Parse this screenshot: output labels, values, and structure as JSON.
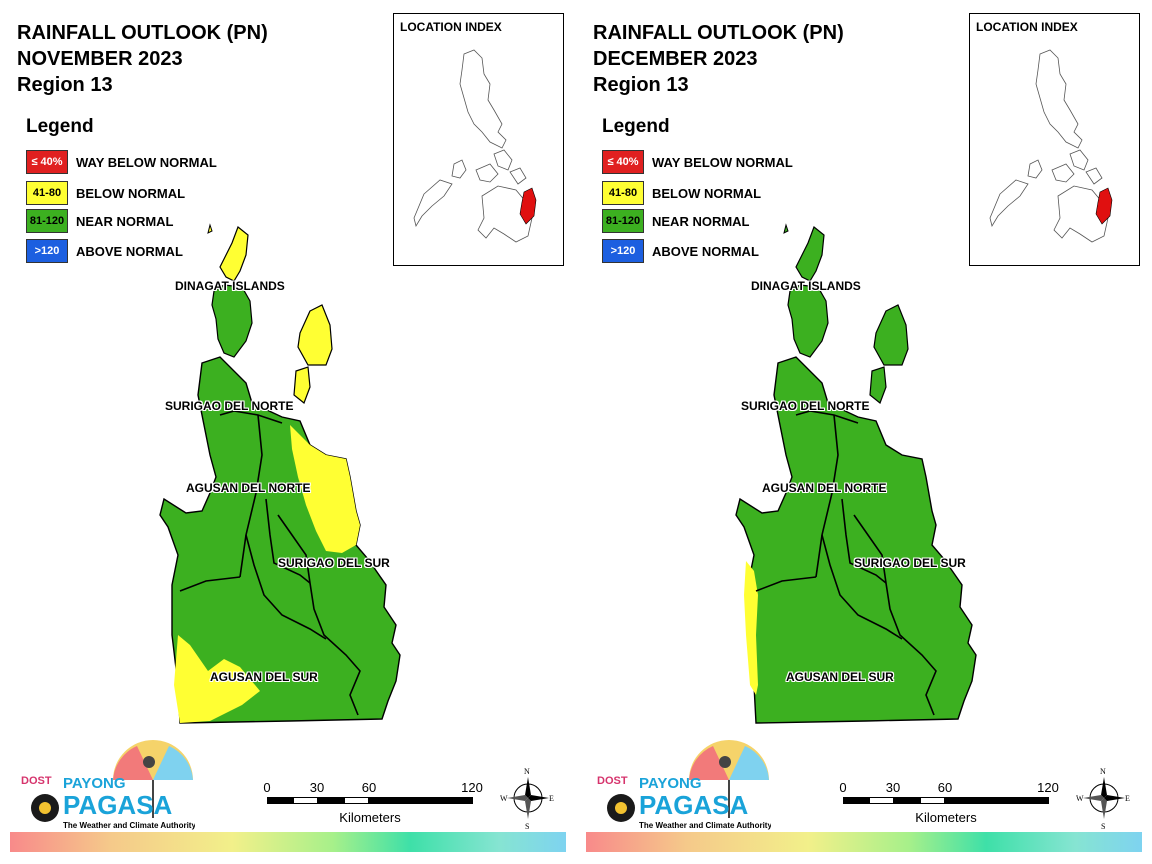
{
  "panels": [
    {
      "title_line1": "RAINFALL OUTLOOK (PN)",
      "title_line2": "NOVEMBER 2023",
      "title_line3": "Region 13",
      "legend": {
        "title": "Legend",
        "items": [
          {
            "range": "≤ 40%",
            "label": "WAY BELOW NORMAL",
            "color": "#e02020"
          },
          {
            "range": "41-80",
            "label": "BELOW NORMAL",
            "color": "#ffff33"
          },
          {
            "range": "81-120",
            "label": "NEAR NORMAL",
            "color": "#3cb020"
          },
          {
            "range": ">120",
            "label": "ABOVE NORMAL",
            "color": "#1c5fe0"
          }
        ]
      },
      "location_index_title": "LOCATION INDEX",
      "provinces": {
        "dinagat": "DINAGAT ISLANDS",
        "surigao_norte": "SURIGAO DEL NORTE",
        "agusan_norte": "AGUSAN DEL NORTE",
        "surigao_sur": "SURIGAO DEL SUR",
        "agusan_sur": "AGUSAN DEL SUR"
      },
      "scale": {
        "t0": "0",
        "t1": "30",
        "t2": "60",
        "t3": "120",
        "unit": "Kilometers"
      },
      "compass": {
        "n": "N",
        "s": "S",
        "e": "E",
        "w": "W"
      },
      "logo": {
        "dost": "DOST",
        "payong": "PAYONG",
        "pagasa": "PAGASA",
        "tagline": "The Weather and Climate Authority"
      }
    },
    {
      "title_line1": "RAINFALL OUTLOOK (PN)",
      "title_line2": "DECEMBER 2023",
      "title_line3": "Region 13",
      "legend": {
        "title": "Legend",
        "items": [
          {
            "range": "≤ 40%",
            "label": "WAY BELOW NORMAL",
            "color": "#e02020"
          },
          {
            "range": "41-80",
            "label": "BELOW NORMAL",
            "color": "#ffff33"
          },
          {
            "range": "81-120",
            "label": "NEAR NORMAL",
            "color": "#3cb020"
          },
          {
            "range": ">120",
            "label": "ABOVE NORMAL",
            "color": "#1c5fe0"
          }
        ]
      },
      "location_index_title": "LOCATION INDEX",
      "provinces": {
        "dinagat": "DINAGAT ISLANDS",
        "surigao_norte": "SURIGAO DEL NORTE",
        "agusan_norte": "AGUSAN DEL NORTE",
        "surigao_sur": "SURIGAO DEL SUR",
        "agusan_sur": "AGUSAN DEL SUR"
      },
      "scale": {
        "t0": "0",
        "t1": "30",
        "t2": "60",
        "t3": "120",
        "unit": "Kilometers"
      },
      "compass": {
        "n": "N",
        "s": "S",
        "e": "E",
        "w": "W"
      },
      "logo": {
        "dost": "DOST",
        "payong": "PAYONG",
        "pagasa": "PAGASA",
        "tagline": "The Weather and Climate Authority"
      }
    }
  ]
}
